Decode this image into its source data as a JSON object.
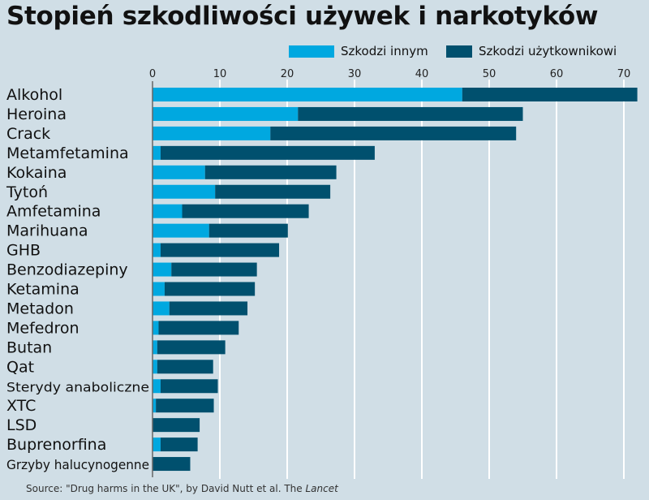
{
  "title": "Stopień szkodliwości używek i narkotyków",
  "source": {
    "text": "Source: \"Drug harms in the UK\", by David Nutt et al. The ",
    "journal": "Lancet"
  },
  "colors": {
    "background": "#d0dee6",
    "others": "#00a8e0",
    "users": "#00506e",
    "grid": "#ffffff"
  },
  "chart_data": {
    "type": "bar",
    "orientation": "horizontal",
    "stacked": true,
    "title": "Stopień szkodliwości używek i narkotyków",
    "xlim": [
      0,
      72
    ],
    "xticks": [
      0,
      10,
      20,
      30,
      40,
      50,
      60,
      70
    ],
    "grid": true,
    "legend_position": "top-right",
    "categories": [
      "Alkohol",
      "Heroina",
      "Crack",
      "Metamfetamina",
      "Kokaina",
      "Tytoń",
      "Amfetamina",
      "Marihuana",
      "GHB",
      "Benzodiazepiny",
      "Ketamina",
      "Metadon",
      "Mefedron",
      "Butan",
      "Qat",
      "Sterydy anaboliczne",
      "XTC",
      "LSD",
      "Buprenorfina",
      "Grzyby halucynogenne"
    ],
    "series": [
      {
        "name": "Szkodzi innym",
        "values": [
          46,
          21.6,
          17.5,
          1.2,
          7.8,
          9.3,
          4.4,
          8.4,
          1.2,
          2.8,
          1.8,
          2.5,
          0.9,
          0.7,
          0.7,
          1.2,
          0.5,
          0,
          1.2,
          0
        ]
      },
      {
        "name": "Szkodzi użytkownikowi",
        "values": [
          26,
          33.4,
          36.5,
          31.8,
          19.5,
          17.1,
          18.8,
          11.7,
          17.6,
          12.7,
          13.4,
          11.6,
          11.9,
          10.1,
          8.3,
          8.5,
          8.6,
          7.0,
          5.5,
          5.6
        ]
      }
    ]
  }
}
